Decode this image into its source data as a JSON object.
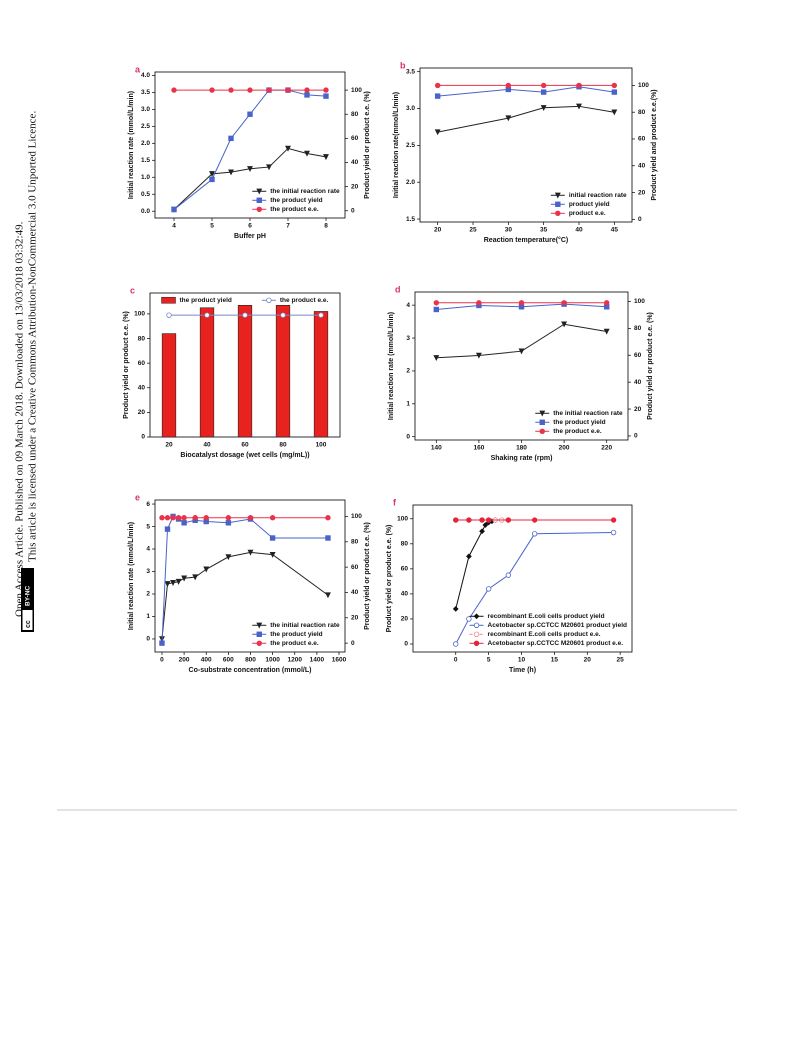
{
  "sidebar": {
    "line1": "Open Access Article. Published on 09 March 2018. Downloaded on 13/03/2018 03:32:49.",
    "line2": "This article is licensed under a Creative Commons Attribution-NonCommercial 3.0 Unported Licence.",
    "badge_cc": "cc",
    "badge_by": "BY-NC"
  },
  "chart_data": [
    {
      "type": "line",
      "panel_label": "a",
      "x_label": "Buffer pH",
      "y_label": "Initial reaction rate (mmol/L/min)",
      "y2_label": "Product yield or product e.e. (%)",
      "x": [
        4,
        5,
        5.5,
        6,
        6.5,
        7,
        7.5,
        8
      ],
      "xlim": [
        3.5,
        8.5
      ],
      "xticks": [
        4,
        5,
        6,
        7,
        8
      ],
      "ylim": [
        -0.2,
        4.1
      ],
      "yticks": [
        {
          "value": 0,
          "label": "0.0"
        },
        0.5,
        {
          "value": 1,
          "label": "1.0"
        },
        1.5,
        {
          "value": 2,
          "label": "2.0"
        },
        2.5,
        {
          "value": 3,
          "label": "3.0"
        },
        3.5,
        {
          "value": 4,
          "label": "4.0"
        }
      ],
      "y2lim": [
        -6,
        115
      ],
      "y2ticks": [
        0,
        20,
        40,
        60,
        80,
        100
      ],
      "legend": "lower right",
      "series": [
        {
          "name": "the initial reaction rate",
          "color": "#222222",
          "marker": "triangle-down",
          "values": [
            0.05,
            1.1,
            1.15,
            1.25,
            1.3,
            1.85,
            1.7,
            1.6
          ]
        },
        {
          "name": "the product yield",
          "color": "#4a63c8",
          "marker": "square",
          "axis": "y2",
          "values": [
            1,
            26,
            60,
            80,
            100,
            100,
            96,
            95
          ]
        },
        {
          "name": "the product e.e.",
          "color": "#e8334a",
          "marker": "circle",
          "axis": "y2",
          "values": [
            100,
            100,
            100,
            100,
            100,
            100,
            100,
            100
          ]
        }
      ]
    },
    {
      "type": "line",
      "panel_label": "b",
      "x_label": "Reaction temperature(°C)",
      "y_label": "Initial reaction rate(mmol/L/min)",
      "y2_label": "Product yield and product e.e.(%)",
      "x": [
        20,
        30,
        35,
        40,
        45
      ],
      "xlim": [
        17.5,
        47.5
      ],
      "xticks": [
        20,
        25,
        30,
        35,
        40,
        45
      ],
      "ylim": [
        1.46,
        3.55
      ],
      "yticks": [
        1.5,
        {
          "value": 2,
          "label": "2.0"
        },
        2.5,
        {
          "value": 3,
          "label": "3.0"
        },
        3.5
      ],
      "y2lim": [
        -2,
        113
      ],
      "y2ticks": [
        0,
        20,
        40,
        60,
        80,
        100
      ],
      "legend": "lower right",
      "series": [
        {
          "name": "initial reaction rate",
          "color": "#222222",
          "marker": "triangle-down",
          "values": [
            2.68,
            2.87,
            3.01,
            3.03,
            2.95
          ]
        },
        {
          "name": "product yield",
          "color": "#4a63c8",
          "marker": "square",
          "axis": "y2",
          "values": [
            92,
            97,
            95,
            99,
            95
          ]
        },
        {
          "name": "product e.e.",
          "color": "#e8334a",
          "marker": "circle",
          "axis": "y2",
          "values": [
            100,
            100,
            100,
            100,
            100
          ]
        }
      ]
    },
    {
      "type": "bar",
      "panel_label": "c",
      "x_label": "Biocatalyst dosage (wet cells (mg/mL))",
      "y_label": "Product yield or product e.e. (%)",
      "categories": [
        "20",
        "40",
        "60",
        "80",
        "100"
      ],
      "ylim": [
        0,
        117
      ],
      "yticks": [
        0,
        20,
        40,
        60,
        80,
        100
      ],
      "legend": "upper center",
      "series": [
        {
          "name": "the product yield",
          "color": "#e8231f",
          "values": [
            84,
            105,
            107,
            107,
            102
          ]
        },
        {
          "name": "the product e.e.",
          "color": "#7b86c9",
          "type": "line",
          "marker": "circle-open",
          "values": [
            99,
            99,
            99,
            99,
            99
          ]
        }
      ]
    },
    {
      "type": "line",
      "panel_label": "d",
      "x_label": "Shaking rate (rpm)",
      "y_label": "Initial reaction rate (mmol/L/min)",
      "y2_label": "Product yield or product e.e. (%)",
      "x": [
        140,
        160,
        180,
        200,
        220
      ],
      "xlim": [
        130,
        230
      ],
      "xticks": [
        140,
        160,
        180,
        200,
        220
      ],
      "ylim": [
        -0.1,
        4.4
      ],
      "yticks": [
        0,
        1,
        2,
        3,
        4
      ],
      "y2lim": [
        -3,
        107
      ],
      "y2ticks": [
        0,
        20,
        40,
        60,
        80,
        100
      ],
      "legend": "lower right",
      "series": [
        {
          "name": "the initial reaction rate",
          "color": "#222222",
          "marker": "triangle-down",
          "values": [
            2.4,
            2.47,
            2.6,
            3.42,
            3.2
          ]
        },
        {
          "name": "the product yield",
          "color": "#4a63c8",
          "marker": "square",
          "axis": "y2",
          "values": [
            94,
            97,
            96,
            98,
            96
          ]
        },
        {
          "name": "the product e.e.",
          "color": "#e8334a",
          "marker": "circle",
          "axis": "y2",
          "values": [
            99,
            99,
            99,
            99,
            99
          ]
        }
      ]
    },
    {
      "type": "line",
      "panel_label": "e",
      "x_label": "Co-substrate concentration (mmol/L)",
      "y_label": "Initial reaction rate (mmol/L/min)",
      "y2_label": "Product yield or product e.e. (%)",
      "x": [
        0,
        50,
        100,
        150,
        200,
        300,
        400,
        600,
        800,
        1000,
        1500
      ],
      "xlim": [
        -63,
        1654
      ],
      "xticks": [
        0,
        200,
        400,
        600,
        800,
        1000,
        1200,
        1400,
        1600
      ],
      "ylim": [
        -0.58,
        6.18
      ],
      "yticks": [
        0,
        1,
        2,
        3,
        4,
        5,
        6
      ],
      "y2lim": [
        -7,
        113
      ],
      "y2ticks": [
        0,
        20,
        40,
        60,
        80,
        100
      ],
      "legend": "lower right",
      "series": [
        {
          "name": "the initial reaction rate",
          "color": "#222222",
          "marker": "triangle-down",
          "values": [
            0,
            2.45,
            2.5,
            2.55,
            2.7,
            2.75,
            3.1,
            3.65,
            3.85,
            3.75,
            1.95
          ]
        },
        {
          "name": "the product yield",
          "color": "#4a63c8",
          "marker": "square",
          "axis": "y2",
          "values": [
            0,
            90,
            100,
            98,
            95,
            97,
            96,
            95,
            98,
            83,
            83
          ]
        },
        {
          "name": "the product e.e.",
          "color": "#e8334a",
          "marker": "circle",
          "axis": "y2",
          "values": [
            99,
            99,
            99,
            99,
            99,
            99,
            99,
            99,
            99,
            99,
            99
          ]
        }
      ]
    },
    {
      "type": "line",
      "panel_label": "f",
      "x_label": "Time (h)",
      "y_label": "Product yield or product e.e. (%)",
      "xlim": [
        -6.5,
        26.8
      ],
      "xticks": [
        0,
        5,
        10,
        15,
        20,
        25
      ],
      "ylim": [
        -6.4,
        111
      ],
      "yticks": [
        0,
        20,
        40,
        60,
        80,
        100
      ],
      "legend": "lower right",
      "series": [
        {
          "name": "recombinant E.coli cells product yield",
          "color": "#111111",
          "marker": "diamond",
          "x": [
            0,
            2,
            4,
            4.5,
            5,
            5.5,
            6
          ],
          "values": [
            28,
            70,
            90,
            95,
            97,
            98,
            99
          ]
        },
        {
          "name": "Acetobacter sp.CCTCC M20601 product yield",
          "color": "#4a63c8",
          "marker": "circle-open",
          "x": [
            0,
            2,
            5,
            8,
            12,
            24
          ],
          "values": [
            0,
            20,
            44,
            55,
            88,
            89
          ]
        },
        {
          "name": "recombinant E.coli cells product e.e.",
          "color": "#f08a8a",
          "marker": "circle-open",
          "dashed": true,
          "x": [
            0,
            2,
            4,
            5,
            6,
            7,
            8
          ],
          "values": [
            99,
            99,
            99,
            99,
            99,
            99,
            99
          ]
        },
        {
          "name": "Acetobacter sp.CCTCC M20601 product e.e.",
          "color": "#e3243a",
          "marker": "circle",
          "x": [
            0,
            2,
            4,
            5,
            8,
            12,
            24
          ],
          "values": [
            99,
            99,
            99,
            99,
            99,
            99,
            99
          ]
        }
      ]
    }
  ]
}
